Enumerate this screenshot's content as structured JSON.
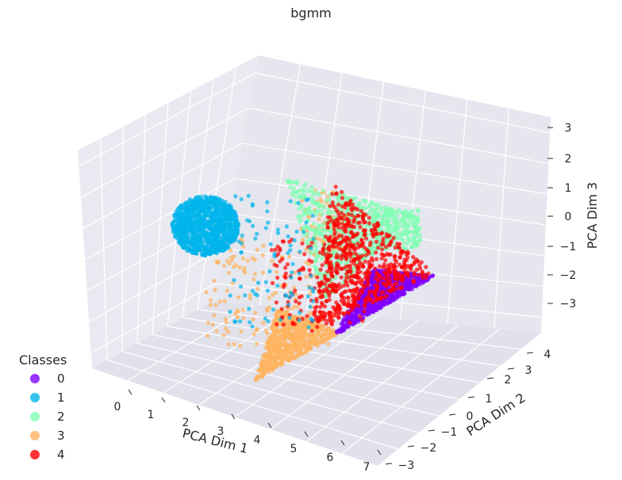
{
  "chart_data": {
    "type": "scatter",
    "title": "bgmm",
    "xlabel": "PCA Dim 1",
    "ylabel": "PCA Dim 2",
    "zlabel": "PCA Dim 3",
    "xticks": [
      "0",
      "1",
      "2",
      "3",
      "4",
      "5",
      "6",
      "7"
    ],
    "yticks": [
      "−3",
      "−2",
      "−1",
      "0",
      "1",
      "2",
      "3",
      "4"
    ],
    "zticks": [
      "−3",
      "−2",
      "−1",
      "0",
      "1",
      "2",
      "3"
    ],
    "xlim": [
      -0.5,
      7
    ],
    "ylim": [
      -3.5,
      4.5
    ],
    "zlim": [
      -3.5,
      3.5
    ],
    "grid": true,
    "legend": {
      "title": "Classes",
      "position": "lower-left",
      "entries": [
        "0",
        "1",
        "2",
        "3",
        "4"
      ]
    },
    "series": [
      {
        "name": "0",
        "color": "#8000ff"
      },
      {
        "name": "1",
        "color": "#00b5eb"
      },
      {
        "name": "2",
        "color": "#80ffb4"
      },
      {
        "name": "3",
        "color": "#ffb360"
      },
      {
        "name": "4",
        "color": "#ff0000"
      }
    ]
  }
}
